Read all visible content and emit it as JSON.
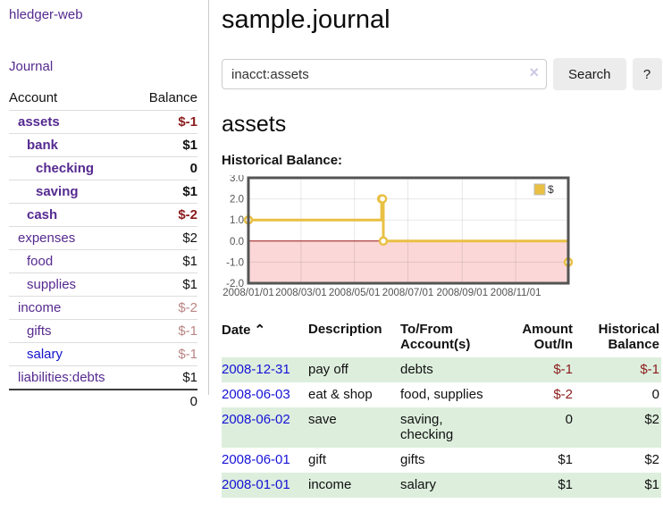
{
  "app": {
    "brand": "hledger-web",
    "nav": {
      "journal": "Journal"
    }
  },
  "sidebar": {
    "headers": {
      "account": "Account",
      "balance": "Balance"
    },
    "rows": [
      {
        "name": "assets",
        "indent": 1,
        "bold": true,
        "balance": "$-1",
        "tone": "neg-strong",
        "link": ""
      },
      {
        "name": "bank",
        "indent": 2,
        "bold": true,
        "balance": "$1",
        "tone": "",
        "link": ""
      },
      {
        "name": "checking",
        "indent": 3,
        "bold": true,
        "balance": "0",
        "tone": "",
        "link": ""
      },
      {
        "name": "saving",
        "indent": 3,
        "bold": true,
        "balance": "$1",
        "tone": "",
        "link": ""
      },
      {
        "name": "cash",
        "indent": 2,
        "bold": true,
        "balance": "$-2",
        "tone": "neg-strong",
        "link": ""
      },
      {
        "name": "expenses",
        "indent": 1,
        "bold": false,
        "balance": "$2",
        "tone": "",
        "link": ""
      },
      {
        "name": "food",
        "indent": 2,
        "bold": false,
        "balance": "$1",
        "tone": "",
        "link": ""
      },
      {
        "name": "supplies",
        "indent": 2,
        "bold": false,
        "balance": "$1",
        "tone": "",
        "link": ""
      },
      {
        "name": "income",
        "indent": 1,
        "bold": false,
        "balance": "$-2",
        "tone": "neg-soft",
        "link": ""
      },
      {
        "name": "gifts",
        "indent": 2,
        "bold": false,
        "balance": "$-1",
        "tone": "neg-soft",
        "link": ""
      },
      {
        "name": "salary",
        "indent": 2,
        "bold": false,
        "balance": "$-1",
        "tone": "neg-soft",
        "link": "blue"
      },
      {
        "name": "liabilities:debts",
        "indent": 1,
        "bold": false,
        "balance": "$1",
        "tone": "",
        "link": ""
      }
    ],
    "total": "0"
  },
  "main": {
    "title": "sample.journal",
    "search": {
      "value": "inacct:assets",
      "clear_icon": "×",
      "button_label": "Search",
      "help_label": "?"
    },
    "account_heading": "assets",
    "chart_title": "Historical Balance:"
  },
  "chart_data": {
    "type": "line",
    "step": true,
    "title": "Historical Balance",
    "series": [
      {
        "name": "$",
        "color": "#e9c044",
        "points": [
          [
            "2008-01-01",
            1
          ],
          [
            "2008-06-01",
            2
          ],
          [
            "2008-06-02",
            2
          ],
          [
            "2008-06-03",
            0
          ],
          [
            "2008-12-31",
            -1
          ]
        ]
      }
    ],
    "x_range": [
      "2008-01-01",
      "2008-12-31"
    ],
    "ylim": [
      -2,
      3
    ],
    "y_ticks": [
      "3.0",
      "2.0",
      "1.0",
      "0.0",
      "-1.0",
      "-2.0"
    ],
    "x_ticks": [
      {
        "date": "2008-01-01",
        "label": "2008/01/01"
      },
      {
        "date": "2008-03-01",
        "label": "2008/03/01"
      },
      {
        "date": "2008-05-01",
        "label": "2008/05/01"
      },
      {
        "date": "2008-07-01",
        "label": "2008/07/01"
      },
      {
        "date": "2008-09-01",
        "label": "2008/09/01"
      },
      {
        "date": "2008-11-01",
        "label": "2008/11/01"
      }
    ],
    "legend": {
      "label": "$",
      "position": "top-right"
    },
    "grid": true,
    "negative_fill": "#fbd7d7",
    "zero_line_color": "#991111",
    "tick_label_color": "#545454",
    "border_color": "#545454"
  },
  "register": {
    "headers": {
      "date": "Date",
      "sort_icon": "⌃",
      "description": "Description",
      "accounts": "To/From Account(s)",
      "amount": "Amount Out/In",
      "balance": "Historical Balance"
    },
    "rows": [
      {
        "date": "2008-12-31",
        "description": "pay off",
        "accounts": "debts",
        "amount": "$-1",
        "amount_tone": "neg",
        "balance": "$-1",
        "balance_tone": "neg",
        "shaded": true
      },
      {
        "date": "2008-06-03",
        "description": "eat & shop",
        "accounts": "food, supplies",
        "amount": "$-2",
        "amount_tone": "neg",
        "balance": "0",
        "balance_tone": "",
        "shaded": false
      },
      {
        "date": "2008-06-02",
        "description": "save",
        "accounts": "saving, checking",
        "amount": "0",
        "amount_tone": "",
        "balance": "$2",
        "balance_tone": "",
        "shaded": true
      },
      {
        "date": "2008-06-01",
        "description": "gift",
        "accounts": "gifts",
        "amount": "$1",
        "amount_tone": "",
        "balance": "$2",
        "balance_tone": "",
        "shaded": false
      },
      {
        "date": "2008-01-01",
        "description": "income",
        "accounts": "salary",
        "amount": "$1",
        "amount_tone": "",
        "balance": "$1",
        "balance_tone": "",
        "shaded": true
      }
    ]
  },
  "colors": {
    "purple_link": "#552a90",
    "blue_link": "#1414cc",
    "neg_strong": "#8b1c1c",
    "neg_soft": "#bb8585",
    "row_green": "#ddeedd",
    "accent_gold": "#e9c044"
  }
}
